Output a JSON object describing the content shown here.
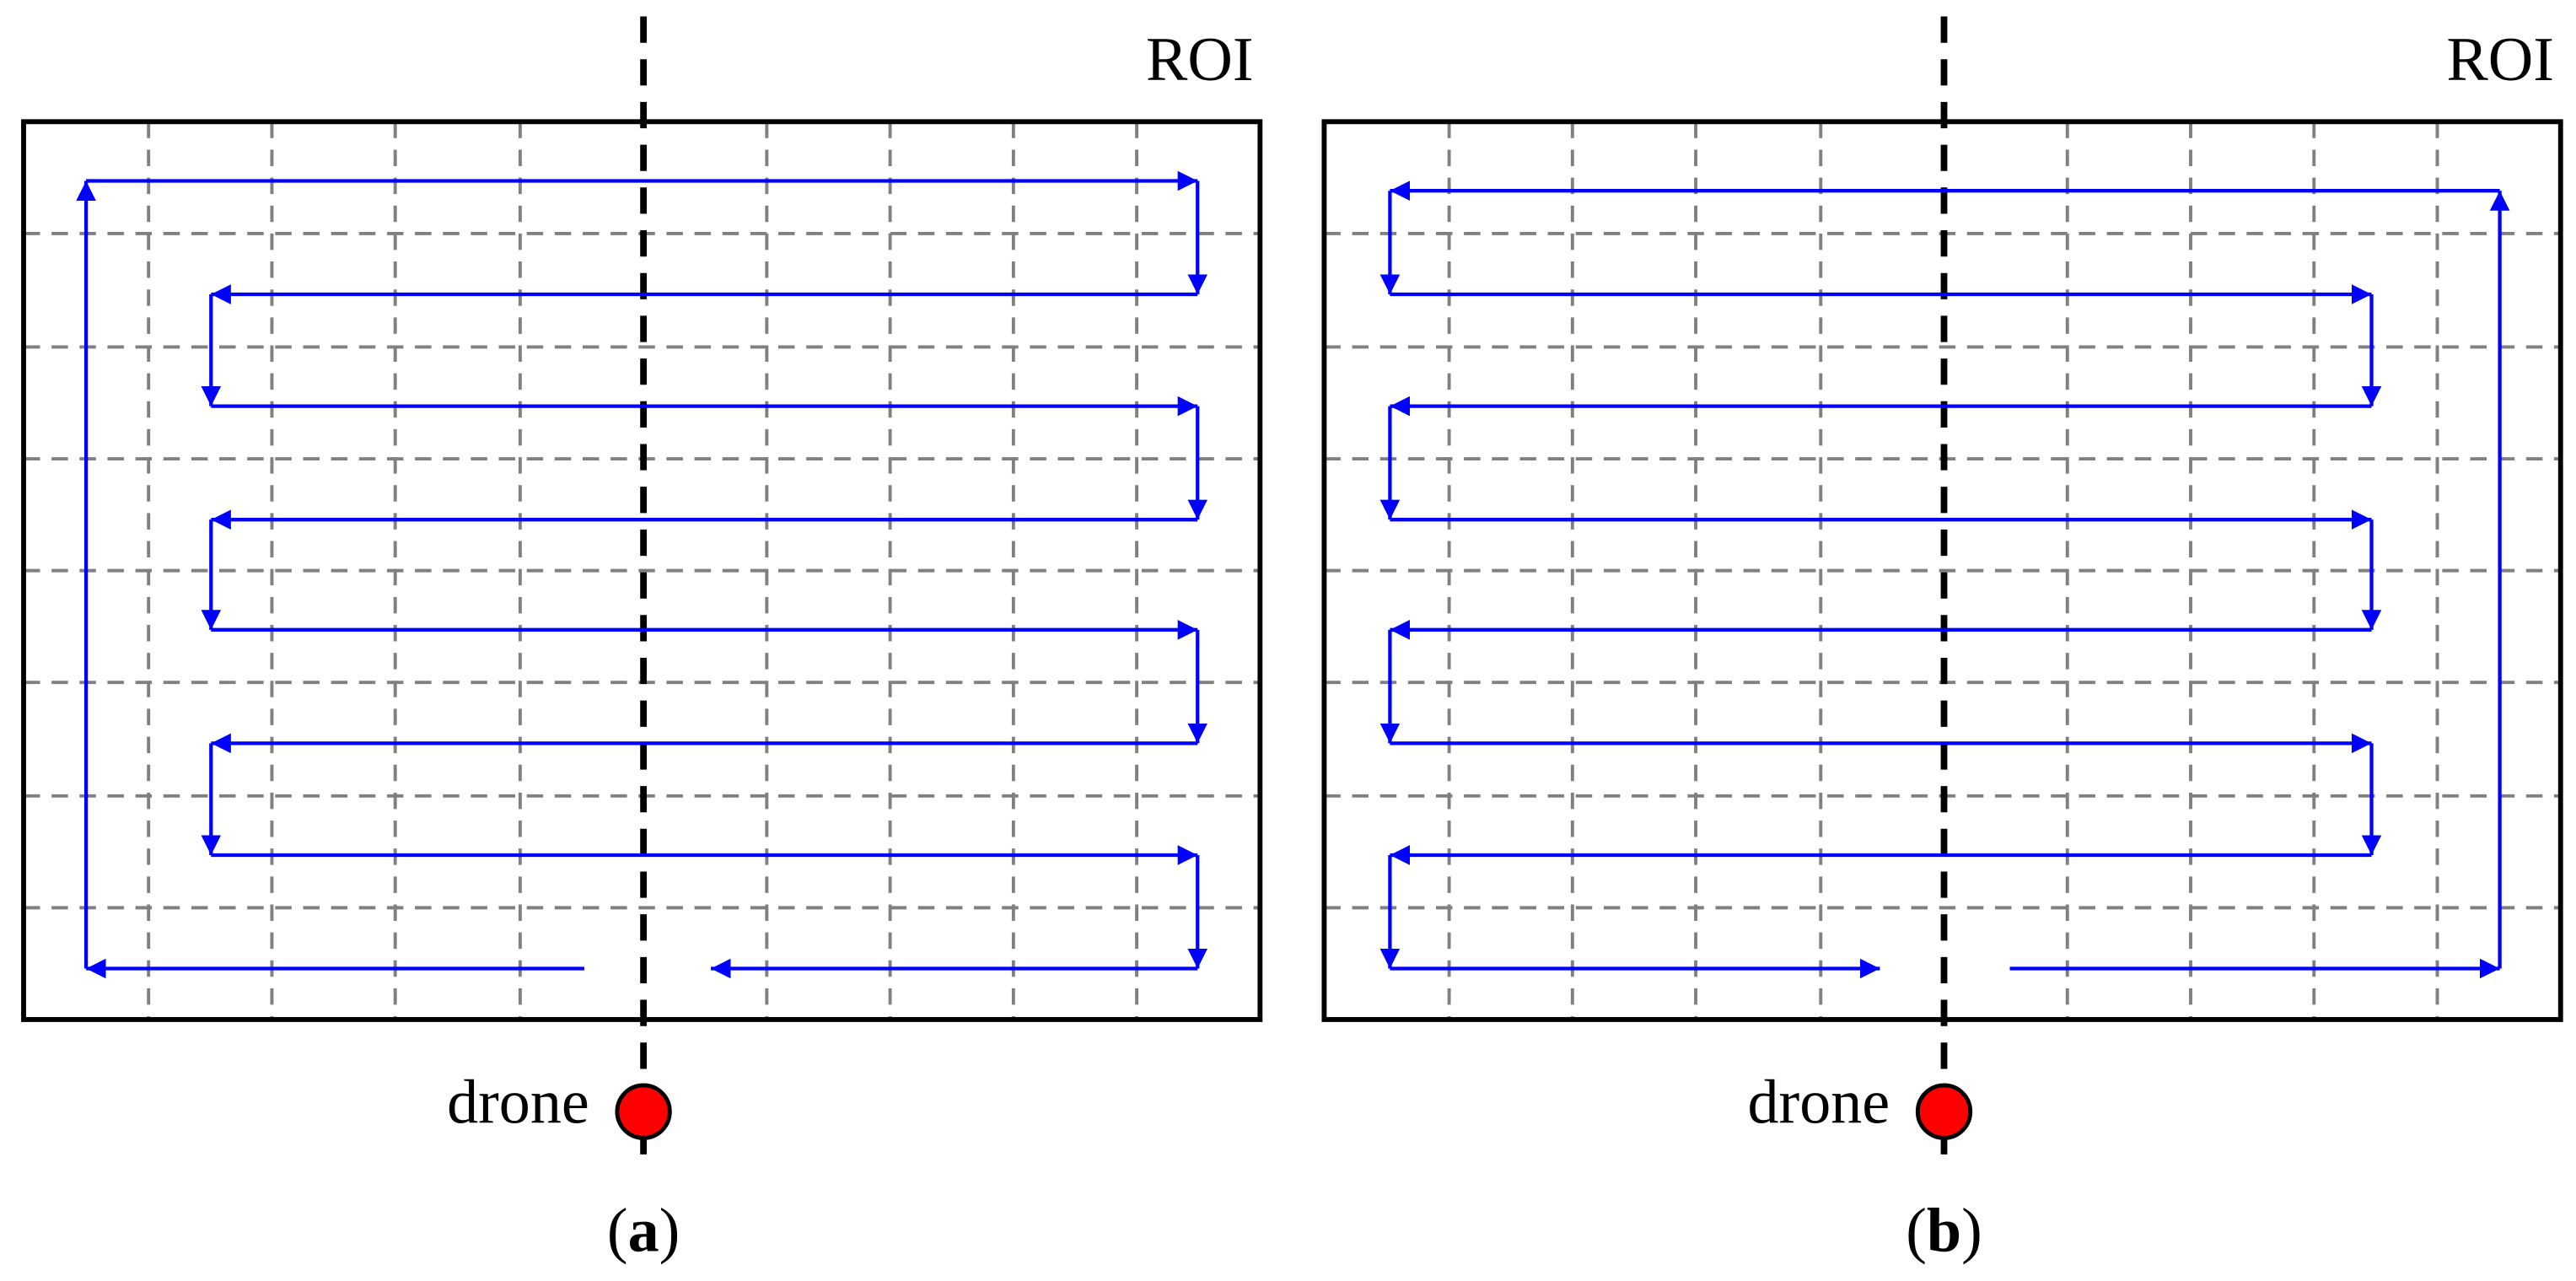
{
  "panels": [
    {
      "roi_label": "ROI",
      "drone_label": "drone",
      "caption": [
        "(",
        "a",
        ")"
      ]
    },
    {
      "roi_label": "ROI",
      "drone_label": "drone",
      "caption": [
        "(",
        "b",
        ")"
      ]
    }
  ]
}
